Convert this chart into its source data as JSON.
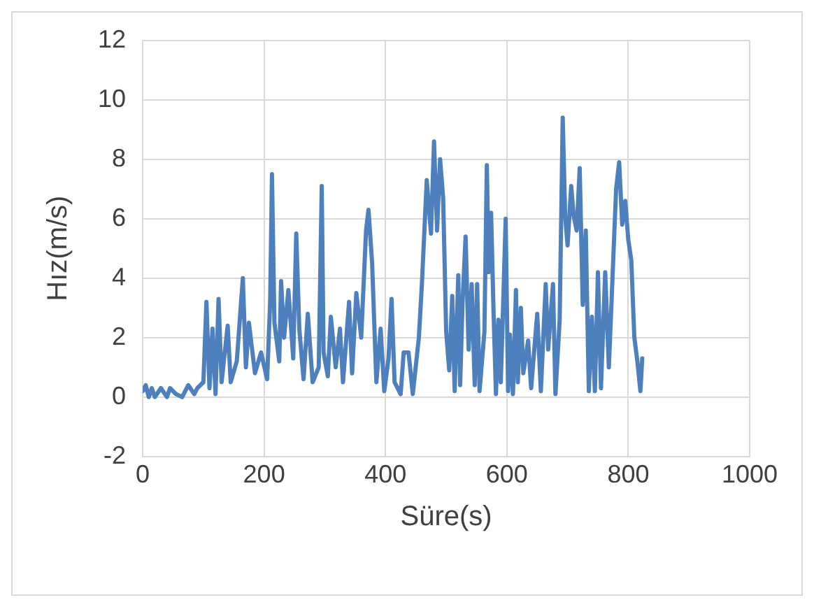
{
  "chart_data": {
    "type": "line",
    "xlabel": "Süre(s)",
    "ylabel": "Hız(m/s)",
    "xlim": [
      0,
      1000
    ],
    "xticks": [
      0,
      200,
      400,
      600,
      800,
      1000
    ],
    "ylim": [
      -2,
      12
    ],
    "yticks": [
      -2,
      0,
      2,
      4,
      6,
      8,
      10,
      12
    ],
    "grid": true,
    "legend": false,
    "marker": "none",
    "series": [
      {
        "color": "#4e80bd",
        "x": [
          0,
          5,
          10,
          15,
          20,
          30,
          40,
          45,
          55,
          65,
          75,
          85,
          90,
          95,
          100,
          105,
          110,
          115,
          120,
          125,
          130,
          140,
          145,
          155,
          165,
          170,
          175,
          185,
          195,
          205,
          210,
          213,
          217,
          225,
          228,
          233,
          240,
          248,
          253,
          258,
          265,
          272,
          280,
          290,
          295,
          298,
          305,
          310,
          318,
          325,
          330,
          340,
          345,
          352,
          360,
          368,
          372,
          378,
          385,
          392,
          398,
          405,
          410,
          415,
          425,
          430,
          438,
          445,
          455,
          460,
          468,
          475,
          480,
          485,
          490,
          495,
          500,
          505,
          510,
          514,
          520,
          523,
          527,
          532,
          537,
          542,
          547,
          551,
          555,
          563,
          567,
          570,
          574,
          578,
          582,
          586,
          590,
          595,
          598,
          602,
          605,
          610,
          615,
          618,
          623,
          627,
          635,
          640,
          650,
          656,
          664,
          668,
          676,
          680,
          687,
          692,
          696,
          700,
          706,
          710,
          715,
          720,
          725,
          730,
          735,
          740,
          745,
          750,
          755,
          762,
          768,
          775,
          780,
          785,
          790,
          795,
          800,
          805,
          810,
          815,
          820,
          823
        ],
        "values": [
          0.2,
          0.4,
          0,
          0.3,
          0,
          0.3,
          0,
          0.3,
          0.1,
          0,
          0.4,
          0.1,
          0.3,
          0.4,
          0.5,
          3.2,
          0.3,
          2.3,
          0.1,
          3.3,
          0.5,
          2.4,
          0.5,
          1.2,
          4.0,
          1.0,
          2.5,
          0.8,
          1.5,
          0.6,
          3.2,
          7.5,
          2.5,
          1.2,
          3.9,
          2.0,
          3.6,
          1.3,
          5.5,
          2.3,
          0.6,
          2.8,
          0.5,
          1.0,
          7.1,
          1.5,
          0.7,
          2.7,
          1.0,
          2.3,
          0.5,
          3.2,
          0.8,
          3.5,
          2.0,
          5.6,
          6.3,
          4.5,
          0.5,
          2.3,
          0.2,
          1.3,
          3.3,
          0.5,
          0.1,
          1.5,
          1.5,
          0.1,
          2.0,
          3.8,
          7.3,
          5.5,
          8.6,
          5.6,
          8.0,
          6.7,
          2.2,
          0.9,
          3.4,
          0.2,
          4.1,
          0.4,
          3.2,
          5.4,
          1.6,
          3.8,
          0.4,
          3.8,
          0.2,
          2.2,
          7.8,
          4.2,
          6.2,
          2.9,
          0.1,
          2.6,
          0.5,
          3.9,
          6.0,
          0.2,
          2.1,
          0.1,
          3.6,
          0.5,
          3.0,
          0.8,
          1.9,
          0.3,
          2.8,
          0.2,
          3.8,
          1.6,
          3.8,
          0.1,
          2.6,
          9.4,
          6.1,
          5.1,
          7.1,
          6.1,
          5.6,
          7.7,
          3.1,
          5.6,
          0.2,
          2.7,
          0.2,
          4.2,
          0.3,
          4.2,
          1.0,
          4.5,
          7.0,
          7.9,
          5.8,
          6.6,
          5.3,
          4.6,
          2.0,
          1.2,
          0.2,
          1.3
        ]
      }
    ]
  }
}
